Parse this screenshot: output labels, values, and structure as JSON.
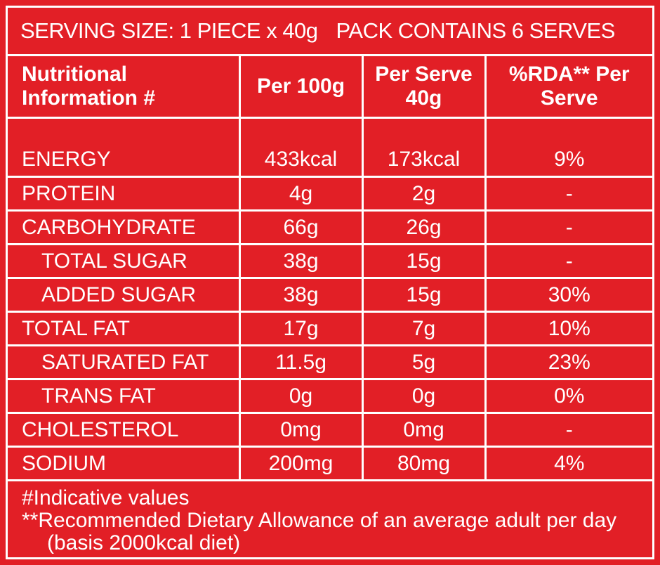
{
  "header": {
    "serving": "SERVING SIZE: 1 PIECE x 40g",
    "pack": "PACK CONTAINS 6 SERVES"
  },
  "table": {
    "columns": [
      "Nutritional Information #",
      "Per 100g",
      "Per Serve 40g",
      "%RDA** Per Serve"
    ],
    "rows": [
      [
        "ENERGY",
        "433kcal",
        "173kcal",
        "9%"
      ],
      [
        "PROTEIN",
        "4g",
        "2g",
        "-"
      ],
      [
        "CARBOHYDRATE",
        "66g",
        "26g",
        "-"
      ],
      [
        "TOTAL SUGAR",
        "38g",
        "15g",
        "-"
      ],
      [
        "ADDED SUGAR",
        "38g",
        "15g",
        "30%"
      ],
      [
        "TOTAL FAT",
        "17g",
        "7g",
        "10%"
      ],
      [
        "SATURATED FAT",
        "11.5g",
        "5g",
        "23%"
      ],
      [
        "TRANS FAT",
        "0g",
        "0g",
        "0%"
      ],
      [
        "CHOLESTEROL",
        "0mg",
        "0mg",
        "-"
      ],
      [
        "SODIUM",
        "200mg",
        "80mg",
        "4%"
      ]
    ]
  },
  "footer": {
    "note1": "#Indicative values",
    "note2": "**Recommended Dietary Allowance of an average adult per day (basis 2000kcal diet)"
  }
}
